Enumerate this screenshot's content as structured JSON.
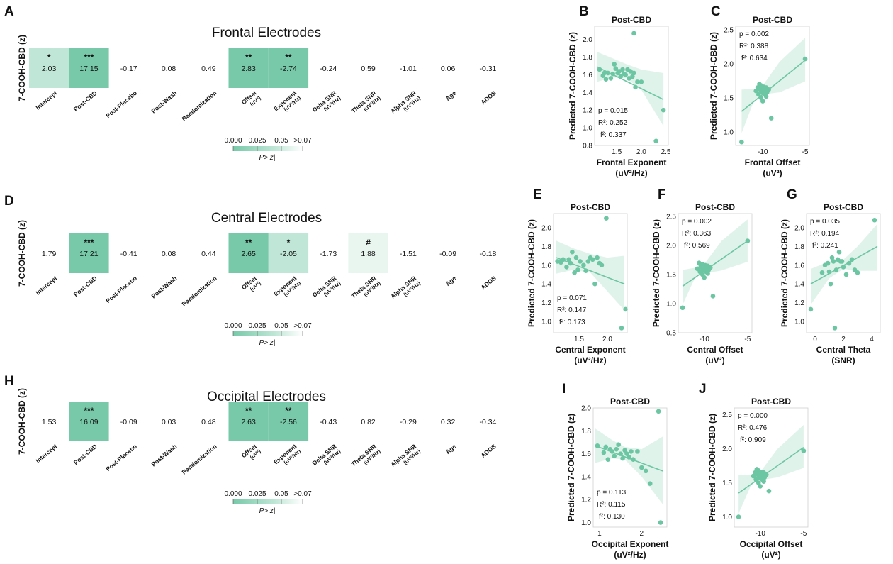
{
  "colors": {
    "accent": "#6cc6a3",
    "band": "#d6efe4",
    "cell_strong": "#78c9aa",
    "cell_mid": "#bfe6d6",
    "cell_light": "#e9f6f0",
    "text": "#111111"
  },
  "shared": {
    "ylabel": "7-COOH-CBD (z)",
    "columns": [
      "Intercept",
      "Post-CBD",
      "Post-Placebo",
      "Post-Wash",
      "Randomization",
      "Offset\n(uV²)",
      "Exponent\n(uV²/Hz)",
      "Delta SNR\n(uV²/Hz)",
      "Theta SNR\n(uV²/Hz)",
      "Alpha SNR\n(uV²/Hz)",
      "Age",
      "ADOS"
    ],
    "colorbar_ticks": [
      "0.000",
      "0.025",
      "0.05",
      ">0.07"
    ],
    "colorbar_label": "P>|z|",
    "scatter_title": "Post-CBD",
    "scatter_ylabel": "Predicted 7-COOH-CBD (z)"
  },
  "chart_data": [
    {
      "panel": "A",
      "type": "heatmap",
      "title": "Frontal Electrodes",
      "values": [
        "2.03",
        "17.15",
        "-0.17",
        "0.08",
        "0.49",
        "2.83",
        "-2.74",
        "-0.24",
        "0.59",
        "-1.01",
        "0.06",
        "-0.31"
      ],
      "significance": [
        "*",
        "***",
        "",
        "",
        "",
        "**",
        "**",
        "",
        "",
        "",
        "",
        ""
      ],
      "shade": [
        2,
        3,
        0,
        0,
        0,
        3,
        3,
        0,
        0,
        0,
        0,
        0
      ]
    },
    {
      "panel": "D",
      "type": "heatmap",
      "title": "Central Electrodes",
      "values": [
        "1.79",
        "17.21",
        "-0.41",
        "0.08",
        "0.44",
        "2.65",
        "-2.05",
        "-1.73",
        "1.88",
        "-1.51",
        "-0.09",
        "-0.18"
      ],
      "significance": [
        "",
        "***",
        "",
        "",
        "",
        "**",
        "*",
        "",
        "#",
        "",
        "",
        ""
      ],
      "shade": [
        0,
        3,
        0,
        0,
        0,
        3,
        2,
        0,
        1,
        0,
        0,
        0
      ]
    },
    {
      "panel": "H",
      "type": "heatmap",
      "title": "Occipital Electrodes",
      "values": [
        "1.53",
        "16.09",
        "-0.09",
        "0.03",
        "0.48",
        "2.63",
        "-2.56",
        "-0.43",
        "0.82",
        "-0.29",
        "0.32",
        "-0.34"
      ],
      "significance": [
        "",
        "***",
        "",
        "",
        "",
        "**",
        "**",
        "",
        "",
        "",
        "",
        ""
      ],
      "shade": [
        0,
        3,
        0,
        0,
        0,
        3,
        3,
        0,
        0,
        0,
        0,
        0
      ]
    },
    {
      "panel": "B",
      "type": "scatter",
      "title": "Post-CBD",
      "xlabel": [
        "Frontal Exponent",
        "(uV²/Hz)"
      ],
      "xlim": [
        1.05,
        2.55
      ],
      "ylim": [
        0.8,
        2.15
      ],
      "xticks": [
        "1.5",
        "2.0",
        "2.5"
      ],
      "xtick_values": [
        1.5,
        2.0,
        2.5
      ],
      "yticks": [
        "0.8",
        "1.0",
        "1.2",
        "1.4",
        "1.6",
        "1.8",
        "2.0"
      ],
      "ytick_values": [
        0.8,
        1.0,
        1.2,
        1.4,
        1.6,
        1.8,
        2.0
      ],
      "stats": [
        "p = 0.015",
        "R²: 0.252",
        "f²: 0.337"
      ],
      "stats_pos": "bottom-left",
      "fit": [
        1.1,
        1.69,
        2.45,
        1.32
      ],
      "band_upper": [
        [
          1.1,
          1.86
        ],
        [
          1.4,
          1.79
        ],
        [
          1.7,
          1.72
        ],
        [
          2.0,
          1.66
        ],
        [
          2.45,
          1.62
        ]
      ],
      "band_lower": [
        [
          1.1,
          1.52
        ],
        [
          1.4,
          1.57
        ],
        [
          1.7,
          1.56
        ],
        [
          2.0,
          1.43
        ],
        [
          2.45,
          1.02
        ]
      ],
      "x": [
        1.15,
        1.22,
        1.25,
        1.28,
        1.32,
        1.38,
        1.42,
        1.45,
        1.48,
        1.52,
        1.55,
        1.58,
        1.62,
        1.65,
        1.68,
        1.72,
        1.75,
        1.78,
        1.82,
        1.85,
        1.88,
        1.92,
        2.0,
        2.3,
        2.45,
        1.85
      ],
      "y": [
        1.66,
        1.59,
        1.62,
        1.55,
        1.62,
        1.56,
        1.61,
        1.72,
        1.67,
        1.62,
        1.64,
        1.58,
        1.66,
        1.61,
        1.6,
        1.66,
        1.56,
        1.64,
        1.58,
        1.62,
        1.46,
        1.52,
        1.52,
        0.85,
        1.2,
        2.07
      ]
    },
    {
      "panel": "C",
      "type": "scatter",
      "title": "Post-CBD",
      "xlabel": [
        "Frontal Offset",
        "(uV²)"
      ],
      "xlim": [
        -13.2,
        -4.5
      ],
      "ylim": [
        0.8,
        2.55
      ],
      "xticks": [
        "-10",
        "-5"
      ],
      "xtick_values": [
        -10,
        -5
      ],
      "yticks": [
        "1.0",
        "1.5",
        "2.0",
        "2.5"
      ],
      "ytick_values": [
        1.0,
        1.5,
        2.0,
        2.5
      ],
      "stats": [
        "p = 0.002",
        "R²: 0.388",
        "f²: 0.634"
      ],
      "stats_pos": "top-left",
      "fit": [
        -12.5,
        1.3,
        -5,
        2.05
      ],
      "band_upper": [
        [
          -12.5,
          1.62
        ],
        [
          -11,
          1.63
        ],
        [
          -10,
          1.68
        ],
        [
          -8,
          2.03
        ],
        [
          -5,
          2.38
        ]
      ],
      "band_lower": [
        [
          -12.5,
          0.98
        ],
        [
          -11,
          1.47
        ],
        [
          -10,
          1.55
        ],
        [
          -8,
          1.58
        ],
        [
          -5,
          1.74
        ]
      ],
      "x": [
        -12.5,
        -10.8,
        -10.6,
        -10.5,
        -10.4,
        -10.3,
        -10.2,
        -10.2,
        -10.1,
        -10.0,
        -10.0,
        -9.9,
        -9.8,
        -9.8,
        -9.7,
        -9.6,
        -9.6,
        -9.5,
        -9.3,
        -9.0,
        -5.0
      ],
      "y": [
        0.85,
        1.6,
        1.65,
        1.55,
        1.7,
        1.62,
        1.5,
        1.68,
        1.58,
        1.63,
        1.45,
        1.66,
        1.55,
        1.62,
        1.6,
        1.52,
        1.65,
        1.58,
        1.62,
        1.2,
        2.07
      ]
    },
    {
      "panel": "E",
      "type": "scatter",
      "title": "Post-CBD",
      "xlabel": [
        "Central Exponent",
        "(uV²/Hz)"
      ],
      "xlim": [
        1.05,
        2.35
      ],
      "ylim": [
        0.88,
        2.15
      ],
      "xticks": [
        "1.5",
        "2.0"
      ],
      "xtick_values": [
        1.5,
        2.0
      ],
      "yticks": [
        "1.0",
        "1.2",
        "1.4",
        "1.6",
        "1.8",
        "2.0"
      ],
      "ytick_values": [
        1.0,
        1.2,
        1.4,
        1.6,
        1.8,
        2.0
      ],
      "stats": [
        "p = 0.071",
        "R²: 0.147",
        "f²: 0.173"
      ],
      "stats_pos": "bottom-left",
      "fit": [
        1.1,
        1.68,
        2.3,
        1.4
      ],
      "band_upper": [
        [
          1.1,
          1.86
        ],
        [
          1.4,
          1.78
        ],
        [
          1.7,
          1.72
        ],
        [
          2.0,
          1.68
        ],
        [
          2.3,
          1.7
        ]
      ],
      "band_lower": [
        [
          1.1,
          1.51
        ],
        [
          1.4,
          1.55
        ],
        [
          1.7,
          1.52
        ],
        [
          2.0,
          1.32
        ],
        [
          2.3,
          1.12
        ]
      ],
      "x": [
        1.12,
        1.18,
        1.22,
        1.28,
        1.32,
        1.35,
        1.38,
        1.42,
        1.45,
        1.48,
        1.52,
        1.58,
        1.62,
        1.66,
        1.7,
        1.74,
        1.78,
        1.82,
        1.86,
        1.9,
        1.98,
        2.25,
        2.32
      ],
      "y": [
        1.64,
        1.63,
        1.66,
        1.58,
        1.66,
        1.62,
        1.74,
        1.52,
        1.68,
        1.55,
        1.64,
        1.6,
        1.54,
        1.64,
        1.68,
        1.66,
        1.4,
        1.68,
        1.62,
        1.6,
        2.1,
        0.93,
        1.13
      ]
    },
    {
      "panel": "F",
      "type": "scatter",
      "title": "Post-CBD",
      "xlabel": [
        "Central Offset",
        "(uV²)"
      ],
      "xlim": [
        -13.0,
        -4.5
      ],
      "ylim": [
        0.5,
        2.55
      ],
      "xticks": [
        "-10",
        "-5"
      ],
      "xtick_values": [
        -10,
        -5
      ],
      "yticks": [
        "0.5",
        "1.0",
        "1.5",
        "2.0",
        "2.5"
      ],
      "ytick_values": [
        0.5,
        1.0,
        1.5,
        2.0,
        2.5
      ],
      "stats": [
        "p = 0.002",
        "R²: 0.363",
        "f²: 0.569"
      ],
      "stats_pos": "top-left",
      "fit": [
        -12.5,
        1.3,
        -5,
        2.08
      ],
      "band_upper": [
        [
          -12.5,
          1.58
        ],
        [
          -11,
          1.62
        ],
        [
          -10,
          1.68
        ],
        [
          -8,
          2.08
        ],
        [
          -5,
          2.45
        ]
      ],
      "band_lower": [
        [
          -12.5,
          0.98
        ],
        [
          -11,
          1.47
        ],
        [
          -10,
          1.52
        ],
        [
          -8,
          1.57
        ],
        [
          -5,
          1.72
        ]
      ],
      "x": [
        -12.5,
        -10.8,
        -10.6,
        -10.5,
        -10.4,
        -10.3,
        -10.2,
        -10.2,
        -10.1,
        -10.0,
        -10.0,
        -9.9,
        -9.8,
        -9.8,
        -9.7,
        -9.6,
        -9.6,
        -9.5,
        -9.3,
        -9.0,
        -5.0
      ],
      "y": [
        0.93,
        1.6,
        1.7,
        1.55,
        1.65,
        1.62,
        1.5,
        1.68,
        1.58,
        1.63,
        1.45,
        1.66,
        1.55,
        1.62,
        1.6,
        1.52,
        1.65,
        1.58,
        1.62,
        1.13,
        2.08
      ]
    },
    {
      "panel": "G",
      "type": "scatter",
      "title": "Post-CBD",
      "xlabel": [
        "Central Theta",
        "(SNR)"
      ],
      "xlim": [
        -0.6,
        4.6
      ],
      "ylim": [
        0.88,
        2.15
      ],
      "xticks": [
        "0",
        "2",
        "4"
      ],
      "xtick_values": [
        0,
        2,
        4
      ],
      "yticks": [
        "1.0",
        "1.2",
        "1.4",
        "1.6",
        "1.8",
        "2.0"
      ],
      "ytick_values": [
        1.0,
        1.2,
        1.4,
        1.6,
        1.8,
        2.0
      ],
      "stats": [
        "p = 0.035",
        "R²: 0.194",
        "f²: 0.241"
      ],
      "stats_pos": "top-left",
      "fit": [
        -0.3,
        1.4,
        4.4,
        1.8
      ],
      "band_upper": [
        [
          -0.3,
          1.56
        ],
        [
          1.0,
          1.64
        ],
        [
          2.0,
          1.66
        ],
        [
          3.0,
          1.8
        ],
        [
          4.4,
          2.04
        ]
      ],
      "band_lower": [
        [
          -0.3,
          1.18
        ],
        [
          1.0,
          1.46
        ],
        [
          2.0,
          1.56
        ],
        [
          3.0,
          1.54
        ],
        [
          4.4,
          1.54
        ]
      ],
      "x": [
        -0.3,
        0.5,
        0.7,
        0.9,
        1.0,
        1.1,
        1.2,
        1.3,
        1.4,
        1.5,
        1.6,
        1.7,
        1.8,
        1.9,
        2.0,
        2.2,
        2.4,
        2.6,
        2.8,
        3.0,
        4.2
      ],
      "y": [
        1.13,
        1.52,
        1.6,
        1.62,
        1.53,
        1.4,
        1.68,
        1.64,
        0.93,
        1.55,
        1.66,
        1.74,
        1.64,
        1.64,
        1.58,
        1.5,
        1.62,
        1.66,
        1.55,
        1.52,
        2.08
      ]
    },
    {
      "panel": "I",
      "type": "scatter",
      "title": "Post-CBD",
      "xlabel": [
        "Occipital Exponent",
        "(uV²/Hz)"
      ],
      "xlim": [
        0.85,
        2.6
      ],
      "ylim": [
        0.96,
        2.0
      ],
      "xticks": [
        "1",
        "2"
      ],
      "xtick_values": [
        1,
        2
      ],
      "yticks": [
        "1.0",
        "1.2",
        "1.4",
        "1.6",
        "1.8",
        "2.0"
      ],
      "ytick_values": [
        1.0,
        1.2,
        1.4,
        1.6,
        1.8,
        2.0
      ],
      "stats": [
        "p = 0.113",
        "R²: 0.115",
        "f²: 0.130"
      ],
      "stats_pos": "bottom-left",
      "fit": [
        0.9,
        1.67,
        2.5,
        1.45
      ],
      "band_upper": [
        [
          0.9,
          1.82
        ],
        [
          1.3,
          1.72
        ],
        [
          1.6,
          1.66
        ],
        [
          2.0,
          1.64
        ],
        [
          2.5,
          1.75
        ]
      ],
      "band_lower": [
        [
          0.9,
          1.52
        ],
        [
          1.3,
          1.56
        ],
        [
          1.6,
          1.55
        ],
        [
          2.0,
          1.4
        ],
        [
          2.5,
          1.16
        ]
      ],
      "x": [
        0.95,
        1.1,
        1.15,
        1.2,
        1.25,
        1.3,
        1.35,
        1.4,
        1.45,
        1.5,
        1.55,
        1.6,
        1.65,
        1.7,
        1.75,
        1.8,
        1.9,
        2.0,
        2.1,
        2.2,
        2.4,
        2.45
      ],
      "y": [
        1.67,
        1.61,
        1.66,
        1.55,
        1.64,
        1.62,
        1.58,
        1.64,
        1.68,
        1.6,
        1.56,
        1.63,
        1.6,
        1.57,
        1.62,
        1.55,
        1.62,
        1.48,
        1.45,
        1.34,
        1.97,
        1.0
      ]
    },
    {
      "panel": "J",
      "type": "scatter",
      "title": "Post-CBD",
      "xlabel": [
        "Occipital Offset",
        "(uV²)"
      ],
      "xlim": [
        -13.0,
        -4.5
      ],
      "ylim": [
        0.85,
        2.6
      ],
      "xticks": [
        "-10",
        "-5"
      ],
      "xtick_values": [
        -10,
        -5
      ],
      "yticks": [
        "1.0",
        "1.5",
        "2.0",
        "2.5"
      ],
      "ytick_values": [
        1.0,
        1.5,
        2.0,
        2.5
      ],
      "stats": [
        "p = 0.000",
        "R²: 0.476",
        "f²: 0.909"
      ],
      "stats_pos": "top-left",
      "fit": [
        -12.5,
        1.35,
        -5,
        2.02
      ],
      "band_upper": [
        [
          -12.5,
          1.62
        ],
        [
          -11,
          1.62
        ],
        [
          -10,
          1.66
        ],
        [
          -8,
          2.0
        ],
        [
          -5,
          2.35
        ]
      ],
      "band_lower": [
        [
          -12.5,
          1.05
        ],
        [
          -11,
          1.48
        ],
        [
          -10,
          1.54
        ],
        [
          -8,
          1.58
        ],
        [
          -5,
          1.72
        ]
      ],
      "x": [
        -12.5,
        -10.8,
        -10.6,
        -10.5,
        -10.4,
        -10.3,
        -10.2,
        -10.2,
        -10.1,
        -10.0,
        -10.0,
        -9.9,
        -9.8,
        -9.8,
        -9.7,
        -9.6,
        -9.6,
        -9.5,
        -9.3,
        -9.0,
        -5.0
      ],
      "y": [
        1.0,
        1.6,
        1.65,
        1.55,
        1.7,
        1.62,
        1.5,
        1.68,
        1.58,
        1.63,
        1.45,
        1.66,
        1.55,
        1.62,
        1.6,
        1.52,
        1.65,
        1.58,
        1.62,
        1.38,
        1.97
      ]
    }
  ]
}
